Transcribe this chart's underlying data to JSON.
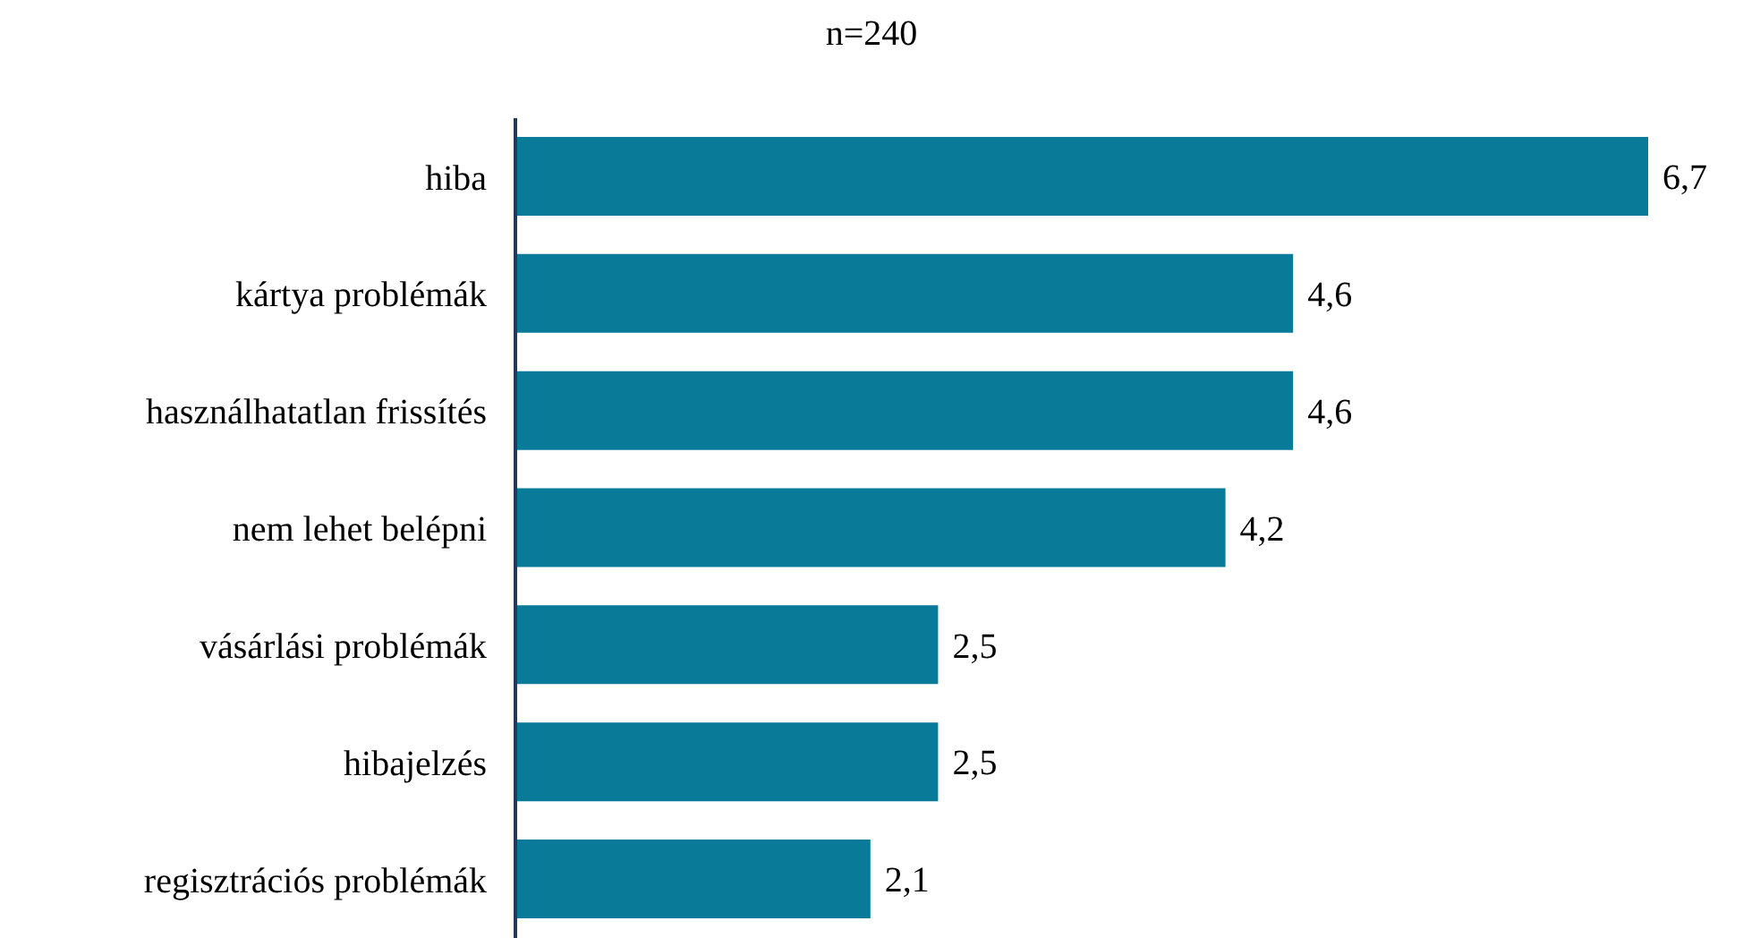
{
  "chart_data": {
    "type": "bar",
    "orientation": "horizontal",
    "title": "n=240",
    "categories": [
      "hiba",
      "kártya problémák",
      "használhatatlan frissítés",
      "nem lehet belépni",
      "vásárlási problémák",
      "hibajelzés",
      "regisztrációs problémák"
    ],
    "values": [
      6.7,
      4.6,
      4.6,
      4.2,
      2.5,
      2.5,
      2.1
    ],
    "value_labels": [
      "6,7",
      "4,6",
      "4,6",
      "4,2",
      "2,5",
      "2,5",
      "2,1"
    ],
    "color": "#0a7a99",
    "grid": false,
    "legend": false
  }
}
